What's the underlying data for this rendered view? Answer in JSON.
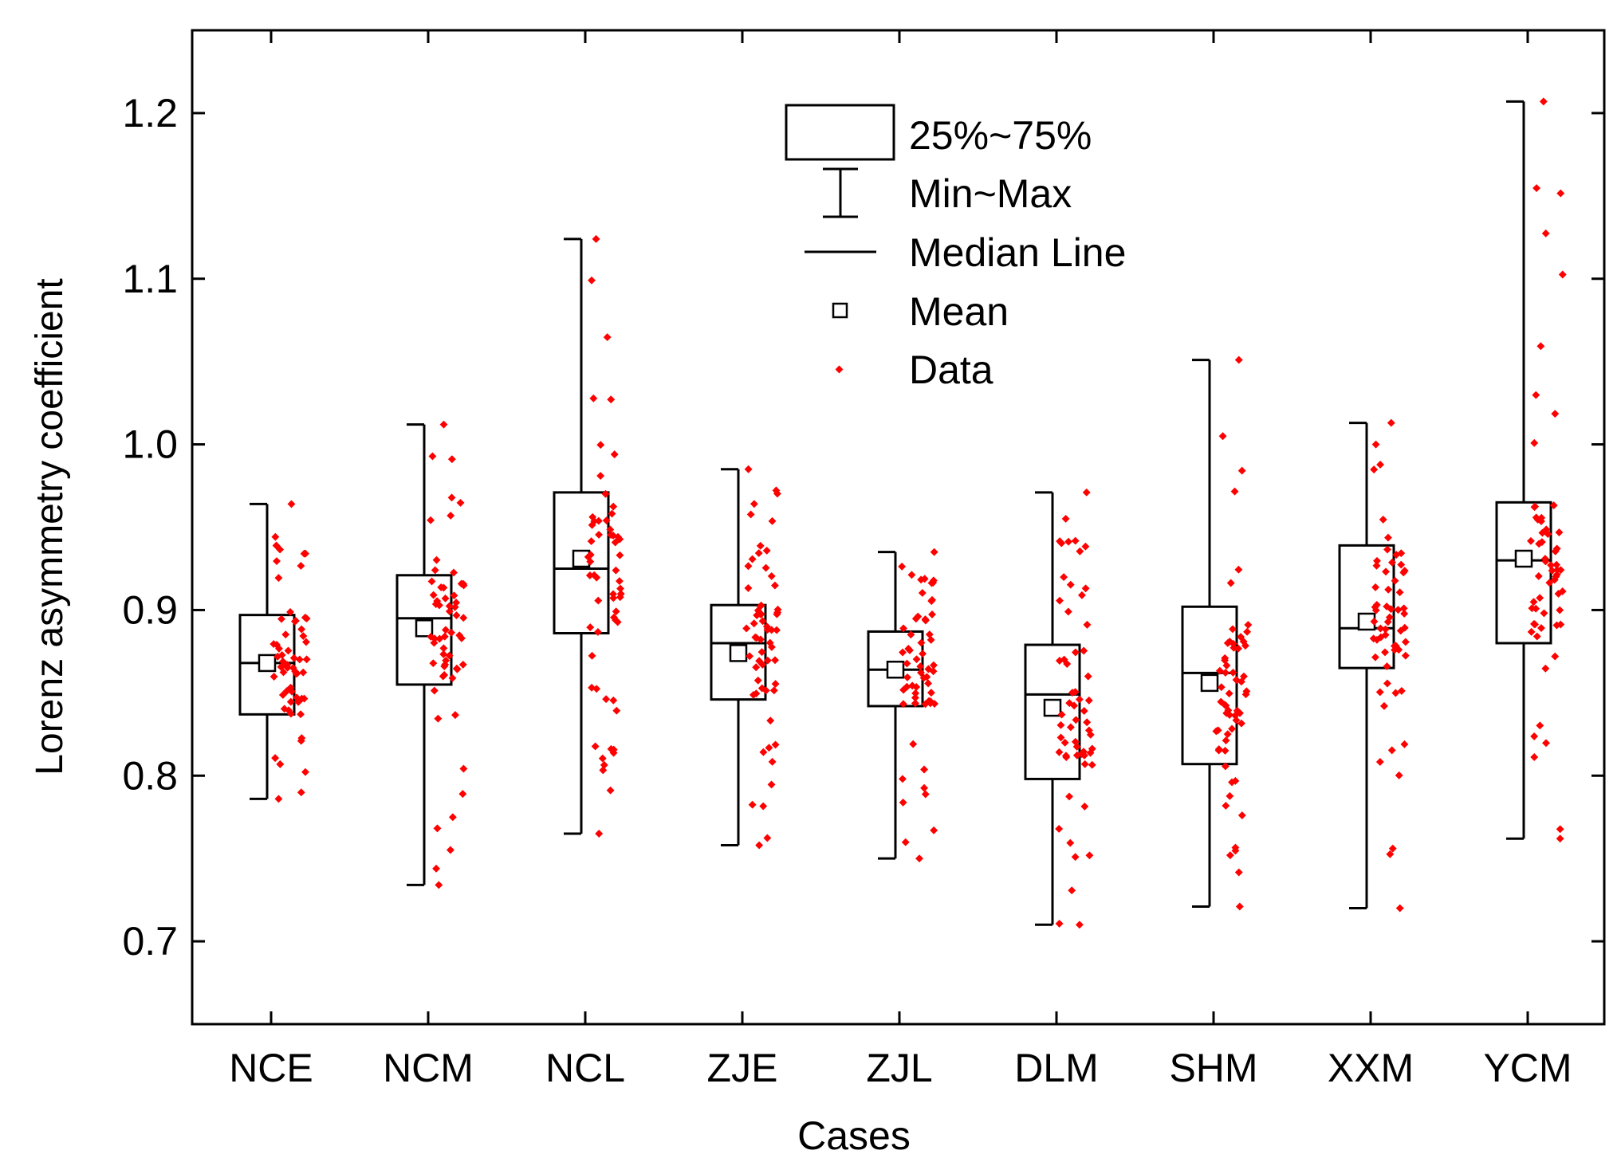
{
  "chart_data": {
    "type": "box",
    "xlabel": "Cases",
    "ylabel": "Lorenz asymmetry coefficient",
    "ylim": [
      0.65,
      1.25
    ],
    "yticks": [
      "0.7",
      "0.8",
      "0.9",
      "1.0",
      "1.1",
      "1.2"
    ],
    "categories": [
      "NCE",
      "NCM",
      "NCL",
      "ZJE",
      "ZJL",
      "DLM",
      "SHM",
      "XXM",
      "YCM"
    ],
    "legend": {
      "position": "top-center",
      "box_label": "25%~75%",
      "whisker_label": "Min~Max",
      "median_label": "Median Line",
      "mean_label": "Mean",
      "data_label": "Data"
    },
    "colors": {
      "data": "#ff0000",
      "box": "#000000"
    },
    "series": [
      {
        "name": "NCE",
        "q1": 0.837,
        "q3": 0.897,
        "median": 0.868,
        "mean": 0.868,
        "min": 0.786,
        "max": 0.964,
        "points_range": [
          0.786,
          0.964
        ]
      },
      {
        "name": "NCM",
        "q1": 0.855,
        "q3": 0.921,
        "median": 0.895,
        "mean": 0.889,
        "min": 0.734,
        "max": 1.012,
        "points_range": [
          0.734,
          1.012
        ]
      },
      {
        "name": "NCL",
        "q1": 0.886,
        "q3": 0.971,
        "median": 0.925,
        "mean": 0.931,
        "min": 0.765,
        "max": 1.124,
        "points_range": [
          0.765,
          1.124
        ]
      },
      {
        "name": "ZJE",
        "q1": 0.846,
        "q3": 0.903,
        "median": 0.88,
        "mean": 0.874,
        "min": 0.758,
        "max": 0.985,
        "points_range": [
          0.758,
          0.985
        ]
      },
      {
        "name": "ZJL",
        "q1": 0.842,
        "q3": 0.887,
        "median": 0.864,
        "mean": 0.864,
        "min": 0.75,
        "max": 0.935,
        "points_range": [
          0.75,
          0.935
        ]
      },
      {
        "name": "DLM",
        "q1": 0.798,
        "q3": 0.879,
        "median": 0.849,
        "mean": 0.841,
        "min": 0.71,
        "max": 0.971,
        "points_range": [
          0.71,
          0.971
        ]
      },
      {
        "name": "SHM",
        "q1": 0.807,
        "q3": 0.902,
        "median": 0.862,
        "mean": 0.856,
        "min": 0.721,
        "max": 1.051,
        "points_range": [
          0.721,
          1.051
        ]
      },
      {
        "name": "XXM",
        "q1": 0.865,
        "q3": 0.939,
        "median": 0.889,
        "mean": 0.893,
        "min": 0.72,
        "max": 1.013,
        "points_range": [
          0.72,
          1.013
        ]
      },
      {
        "name": "YCM",
        "q1": 0.88,
        "q3": 0.965,
        "median": 0.93,
        "mean": 0.931,
        "min": 0.762,
        "max": 1.207,
        "points_range": [
          0.762,
          1.207
        ]
      }
    ]
  }
}
